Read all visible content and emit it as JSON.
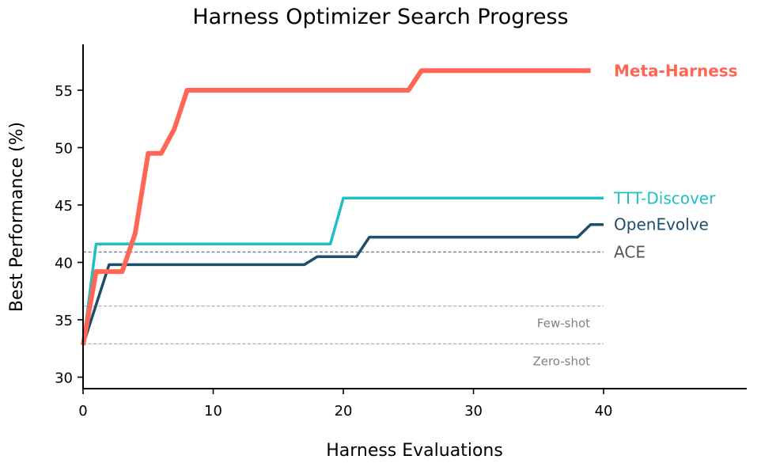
{
  "chart_data": {
    "type": "line",
    "title": "Harness Optimizer Search Progress",
    "xlabel": "Harness Evaluations",
    "ylabel": "Best Performance (%)",
    "xlim": [
      0,
      51
    ],
    "ylim": [
      29,
      59
    ],
    "xticks": [
      0,
      10,
      20,
      30,
      40
    ],
    "yticks": [
      30,
      35,
      40,
      45,
      50,
      55
    ],
    "grid": false,
    "series": [
      {
        "name": "Meta-Harness",
        "color": "#FF6655",
        "bold": true,
        "x": [
          0,
          1,
          2,
          3,
          4,
          5,
          6,
          7,
          8,
          9,
          10,
          11,
          12,
          13,
          14,
          15,
          16,
          17,
          18,
          19,
          20,
          21,
          22,
          23,
          24,
          25,
          26,
          27,
          28,
          29,
          30,
          31,
          32,
          33,
          34,
          35,
          36,
          37,
          38,
          39
        ],
        "values": [
          32.8,
          39.2,
          39.2,
          39.2,
          42.5,
          49.5,
          49.5,
          51.6,
          55.0,
          55.0,
          55.0,
          55.0,
          55.0,
          55.0,
          55.0,
          55.0,
          55.0,
          55.0,
          55.0,
          55.0,
          55.0,
          55.0,
          55.0,
          55.0,
          55.0,
          55.0,
          56.7,
          56.7,
          56.7,
          56.7,
          56.7,
          56.7,
          56.7,
          56.7,
          56.7,
          56.7,
          56.7,
          56.7,
          56.7,
          56.7
        ]
      },
      {
        "name": "TTT-Discover",
        "color": "#1FBFC4",
        "bold": false,
        "x": [
          0,
          1,
          19,
          20,
          40
        ],
        "values": [
          32.8,
          41.6,
          41.6,
          45.6,
          45.6
        ]
      },
      {
        "name": "OpenEvolve",
        "color": "#1D4E6B",
        "bold": false,
        "x": [
          0,
          2,
          17,
          18,
          21,
          22,
          38,
          39,
          40
        ],
        "values": [
          32.8,
          39.8,
          39.8,
          40.5,
          40.5,
          42.2,
          42.2,
          43.3,
          43.3
        ]
      }
    ],
    "reference_lines": [
      {
        "name": "ACE",
        "value": 40.9,
        "color": "#808080",
        "style": "dashed",
        "label_position": "right"
      },
      {
        "name": "Few-shot",
        "value": 36.2,
        "color": "#b0b0b0",
        "style": "dashed",
        "label_position": "below-right"
      },
      {
        "name": "Zero-shot",
        "value": 32.9,
        "color": "#b0b0b0",
        "style": "dashed",
        "label_position": "below-right"
      }
    ]
  }
}
